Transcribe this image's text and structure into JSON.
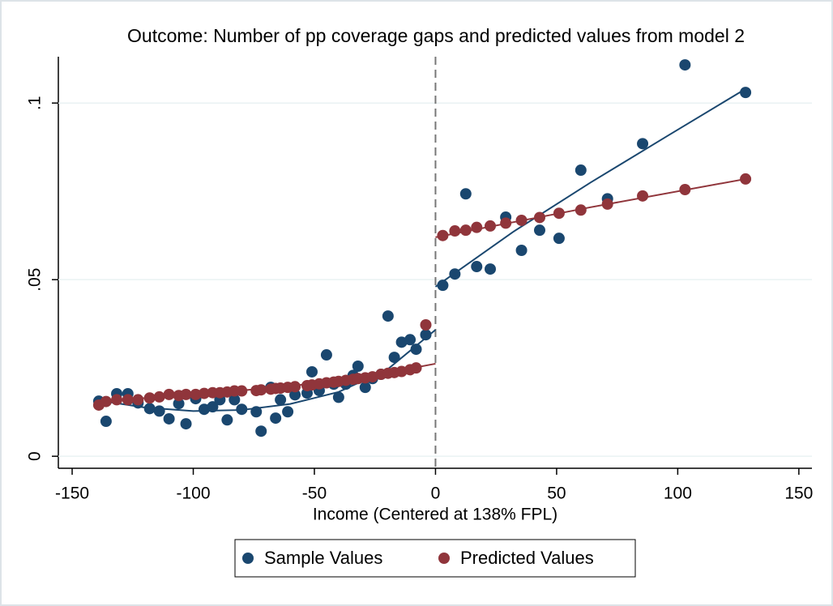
{
  "chart_data": {
    "type": "scatter",
    "title": "Outcome: Number of pp coverage gaps and predicted values from model 2",
    "x_label": "Income (Centered at 138% FPL)",
    "xlim": [
      -155.7,
      155.4
    ],
    "xticks": [
      -150,
      -100,
      -50,
      0,
      50,
      100,
      150
    ],
    "ylim": [
      -0.0034,
      0.12
    ],
    "yticks": [
      0,
      {
        "value": 0.05,
        "label": ".05"
      },
      {
        "value": 0.1,
        "label": ".1"
      }
    ],
    "grid": true,
    "xline": 0,
    "legend": "bottom",
    "series": [
      {
        "name": "Sample Values",
        "color": "#1a476f",
        "x": [
          -139,
          -136,
          -131.6,
          -127,
          -122.8,
          -118,
          -114,
          -110,
          -106,
          -103,
          -99,
          -95.5,
          -92,
          -89,
          -86,
          -83,
          -80,
          -74,
          -72,
          -68,
          -66,
          -64,
          -61,
          -58,
          -53,
          -51,
          -48,
          -45,
          -42,
          -40,
          -37,
          -34,
          -32,
          -29,
          -26,
          -22.5,
          -19.6,
          -17,
          -14,
          -10.5,
          -8,
          -4,
          3,
          8,
          12.5,
          17,
          22.6,
          29,
          35.5,
          43,
          51,
          60,
          71,
          85.5,
          103,
          128
        ],
        "values": [
          0.0156,
          0.0099,
          0.0177,
          0.0177,
          0.0151,
          0.0135,
          0.0128,
          0.0106,
          0.0149,
          0.0092,
          0.0163,
          0.0133,
          0.014,
          0.016,
          0.0103,
          0.016,
          0.0133,
          0.0126,
          0.0071,
          0.0195,
          0.0108,
          0.016,
          0.0126,
          0.0174,
          0.0179,
          0.0239,
          0.0186,
          0.0287,
          0.0204,
          0.0167,
          0.0204,
          0.0229,
          0.0255,
          0.0195,
          0.022,
          0.0232,
          0.0397,
          0.028,
          0.0323,
          0.033,
          0.0303,
          0.0344,
          0.0484,
          0.0516,
          0.0743,
          0.0537,
          0.053,
          0.0677,
          0.0583,
          0.064,
          0.0617,
          0.081,
          0.0729,
          0.0885,
          0.1108,
          0.103
        ]
      },
      {
        "name": "Predicted Values",
        "color": "#90353b",
        "x": [
          -139,
          -136,
          -131.6,
          -127,
          -122.8,
          -118,
          -114,
          -110,
          -106,
          -103,
          -99,
          -95.5,
          -92,
          -89,
          -86,
          -83,
          -80,
          -74,
          -72,
          -68,
          -66,
          -64,
          -61,
          -58,
          -53,
          -51,
          -48,
          -45,
          -42,
          -40,
          -37,
          -34,
          -32,
          -29,
          -26,
          -22.5,
          -19.6,
          -17,
          -14,
          -10.5,
          -8,
          -4,
          3,
          8,
          12.5,
          17,
          22.6,
          29,
          35.5,
          43,
          51,
          60,
          71,
          85.5,
          103,
          128
        ],
        "values": [
          0.0145,
          0.0155,
          0.016,
          0.016,
          0.016,
          0.0165,
          0.0168,
          0.0175,
          0.0172,
          0.0175,
          0.0175,
          0.0178,
          0.018,
          0.018,
          0.0182,
          0.0185,
          0.0185,
          0.0186,
          0.0188,
          0.019,
          0.0192,
          0.0193,
          0.0195,
          0.0197,
          0.02,
          0.0202,
          0.0205,
          0.0208,
          0.021,
          0.0212,
          0.0215,
          0.0218,
          0.022,
          0.0222,
          0.0225,
          0.0232,
          0.0235,
          0.0237,
          0.024,
          0.0245,
          0.025,
          0.0372,
          0.0625,
          0.0638,
          0.064,
          0.0648,
          0.0652,
          0.066,
          0.0668,
          0.0676,
          0.0688,
          0.0697,
          0.0714,
          0.0737,
          0.0755,
          0.0785
        ]
      }
    ],
    "fit_lines": [
      {
        "color": "#1a476f",
        "x": [
          -139,
          -120,
          -100,
          -80,
          -60,
          -40,
          -20,
          0
        ],
        "values": [
          0.0158,
          0.0138,
          0.0128,
          0.0131,
          0.0148,
          0.0182,
          0.0245,
          0.0358
        ]
      },
      {
        "color": "#1a476f",
        "x": [
          0,
          32,
          64,
          96,
          128
        ],
        "values": [
          0.048,
          0.0635,
          0.0775,
          0.0908,
          0.104
        ]
      },
      {
        "color": "#90353b",
        "x": [
          -139,
          -100,
          -60,
          -20,
          0
        ],
        "values": [
          0.0155,
          0.0175,
          0.0198,
          0.0236,
          0.0262
        ]
      },
      {
        "color": "#90353b",
        "x": [
          0,
          64,
          128
        ],
        "values": [
          0.062,
          0.0705,
          0.0785
        ]
      }
    ]
  }
}
